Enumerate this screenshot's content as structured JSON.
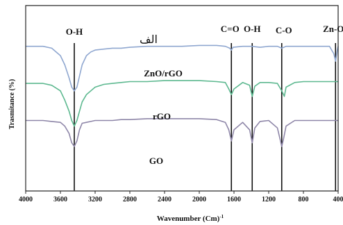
{
  "chart_data": {
    "type": "line",
    "xlabel": "Wavenumber (Cm)",
    "xlabel_superscript": "-1",
    "ylabel": "Trasmitance (%)",
    "corner_label": "الف",
    "xlim": [
      4000,
      400
    ],
    "ylim": [
      0,
      100
    ],
    "x_ticks": [
      4000,
      3600,
      3200,
      2800,
      2400,
      2000,
      1600,
      1200,
      800,
      400
    ],
    "x_tick_labels": [
      "4000",
      "3600",
      "3200",
      "2800",
      "2400",
      "2000",
      "1600",
      "1200",
      "800",
      "400"
    ],
    "grid": false,
    "peak_markers": [
      {
        "x": 3440,
        "label": "O-H"
      },
      {
        "x": 1630,
        "label": "C=O"
      },
      {
        "x": 1390,
        "label": "O-H"
      },
      {
        "x": 1050,
        "label": "C-O"
      },
      {
        "x": 430,
        "label": "Zn-O"
      }
    ],
    "series": [
      {
        "name": "ZnO/rGO",
        "color": "#8fa7d0",
        "x": [
          4000,
          3800,
          3700,
          3600,
          3550,
          3500,
          3470,
          3440,
          3410,
          3380,
          3350,
          3300,
          3250,
          3200,
          3100,
          3000,
          2900,
          2800,
          2600,
          2400,
          2200,
          2000,
          1800,
          1700,
          1650,
          1630,
          1610,
          1500,
          1400,
          1300,
          1200,
          1100,
          1050,
          1000,
          900,
          800,
          700,
          600,
          500,
          450,
          430,
          410,
          400
        ],
        "y": [
          78,
          78,
          77,
          73,
          68,
          61,
          56,
          54,
          56,
          62,
          68,
          73,
          75,
          76,
          76.5,
          77,
          77,
          77.5,
          78,
          78,
          78,
          78.5,
          78.5,
          78,
          77,
          76,
          77.5,
          78,
          78,
          77.5,
          78,
          78,
          77,
          78,
          78,
          78,
          78,
          78,
          78,
          74,
          70,
          76,
          78
        ]
      },
      {
        "name": "rGO",
        "color": "#5cb88f",
        "x": [
          4000,
          3800,
          3700,
          3600,
          3550,
          3500,
          3470,
          3440,
          3410,
          3380,
          3350,
          3300,
          3250,
          3200,
          3100,
          3000,
          2900,
          2800,
          2600,
          2400,
          2200,
          2000,
          1800,
          1700,
          1660,
          1630,
          1600,
          1500,
          1420,
          1390,
          1360,
          1300,
          1200,
          1100,
          1050,
          1020,
          1000,
          900,
          800,
          700,
          600,
          500,
          400
        ],
        "y": [
          58,
          58,
          57,
          54,
          49,
          43,
          38,
          35,
          38,
          43,
          48,
          52,
          54,
          56,
          57.5,
          58,
          58.5,
          59,
          59,
          59.5,
          59.5,
          59.5,
          59,
          58.5,
          55,
          52,
          55,
          58.5,
          57,
          51,
          56.5,
          58.5,
          58.5,
          58,
          54,
          51,
          56,
          58.5,
          59,
          59,
          59,
          59,
          59
        ]
      },
      {
        "name": "GO",
        "color": "#8e86a8",
        "x": [
          4000,
          3800,
          3700,
          3600,
          3550,
          3500,
          3470,
          3440,
          3410,
          3380,
          3350,
          3300,
          3250,
          3200,
          3100,
          3000,
          2900,
          2800,
          2600,
          2400,
          2200,
          2000,
          1800,
          1700,
          1660,
          1630,
          1600,
          1500,
          1420,
          1390,
          1360,
          1300,
          1200,
          1100,
          1070,
          1050,
          1030,
          1000,
          900,
          800,
          700,
          600,
          500,
          400
        ],
        "y": [
          38,
          38,
          37.5,
          37,
          35,
          31,
          26,
          24,
          27,
          33,
          36.5,
          37,
          37.5,
          38,
          38,
          38,
          38.5,
          38.5,
          39,
          39,
          39,
          39,
          38.5,
          37,
          33,
          27,
          33,
          37,
          33,
          26,
          34,
          37.5,
          38,
          34,
          28,
          24,
          28,
          35,
          38,
          38,
          38,
          38,
          38,
          38
        ]
      }
    ]
  }
}
